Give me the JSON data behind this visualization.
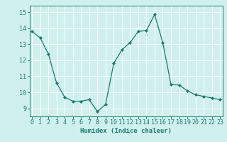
{
  "x": [
    0,
    1,
    2,
    3,
    4,
    5,
    6,
    7,
    8,
    9,
    10,
    11,
    12,
    13,
    14,
    15,
    16,
    17,
    18,
    19,
    20,
    21,
    22,
    23
  ],
  "y": [
    13.8,
    13.4,
    12.4,
    10.6,
    9.7,
    9.45,
    9.45,
    9.55,
    8.8,
    9.25,
    11.8,
    12.65,
    13.1,
    13.8,
    13.85,
    14.85,
    13.1,
    10.5,
    10.45,
    10.1,
    9.85,
    9.75,
    9.65,
    9.55
  ],
  "line_color": "#1a7a6e",
  "marker": "D",
  "markersize": 2.0,
  "linewidth": 0.9,
  "bg_color": "#d0f0ee",
  "grid_color": "#ffffff",
  "axes_color": "#1a7a6e",
  "xlabel": "Humidex (Indice chaleur)",
  "xlabel_fontsize": 6.5,
  "tick_fontsize": 6.0,
  "ylim": [
    8.5,
    15.4
  ],
  "yticks": [
    9,
    10,
    11,
    12,
    13,
    14,
    15
  ],
  "xticks": [
    0,
    1,
    2,
    3,
    4,
    5,
    6,
    7,
    8,
    9,
    10,
    11,
    12,
    13,
    14,
    15,
    16,
    17,
    18,
    19,
    20,
    21,
    22,
    23
  ],
  "xlim": [
    -0.3,
    23.3
  ]
}
